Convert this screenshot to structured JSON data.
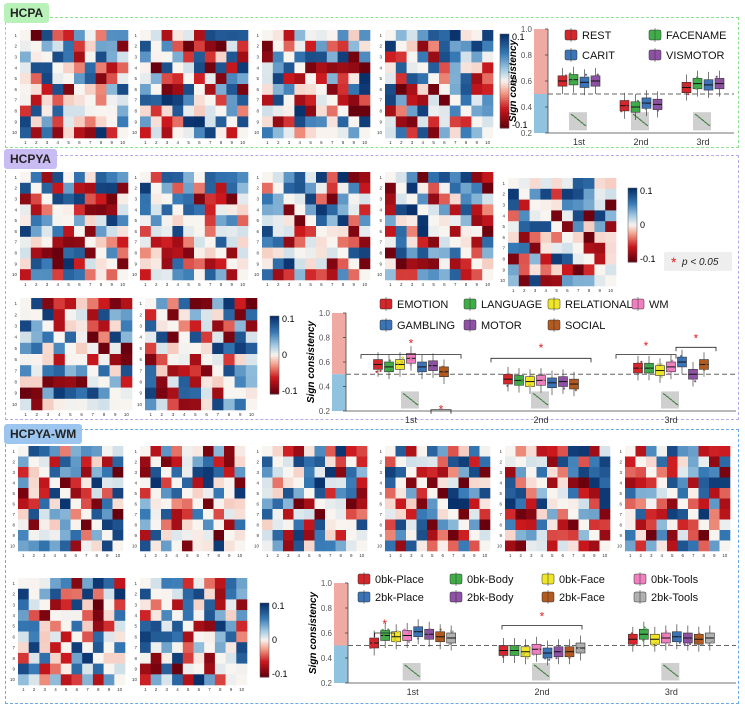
{
  "sections": [
    {
      "id": "hcpa",
      "label": "HCPA",
      "color": "#8fe08f",
      "tag_bg": "#b9f2b9"
    },
    {
      "id": "hcpya",
      "label": "HCPYA",
      "color": "#b9a8e8",
      "tag_bg": "#c9bcf2"
    },
    {
      "id": "hcpyawm",
      "label": "HCPYA-WM",
      "color": "#6aa8e8",
      "tag_bg": "#9cc6f0"
    }
  ],
  "colorbar": {
    "max": "0.1",
    "mid": "0",
    "min": "-0.1"
  },
  "significance_note": {
    "star": "*",
    "text": "p < 0.05"
  },
  "matrix_tick_labels": [
    "1",
    "2",
    "3",
    "4",
    "5",
    "6",
    "7",
    "8",
    "9",
    "10"
  ],
  "chart_data": [
    {
      "type": "box",
      "section": "HCPA",
      "ylabel": "Sign consistency",
      "ylim": [
        0.2,
        1.0
      ],
      "yticks": [
        "0.2",
        "0.4",
        "0.6",
        "0.8",
        "1.0"
      ],
      "categories": [
        "1st",
        "2nd",
        "3rd"
      ],
      "reference_line": 0.5,
      "series": [
        {
          "name": "REST",
          "color": "#d7262b",
          "medians": [
            0.6,
            0.41,
            0.55
          ]
        },
        {
          "name": "FACENAME",
          "color": "#3fae49",
          "medians": [
            0.61,
            0.4,
            0.58
          ]
        },
        {
          "name": "CARIT",
          "color": "#3b74b8",
          "medians": [
            0.59,
            0.43,
            0.57
          ]
        },
        {
          "name": "VISMOTOR",
          "color": "#8e51a5",
          "medians": [
            0.6,
            0.42,
            0.58
          ]
        }
      ]
    },
    {
      "type": "box",
      "section": "HCPYA",
      "ylabel": "Sign consistency",
      "ylim": [
        0.2,
        1.0
      ],
      "yticks": [
        "0.2",
        "0.4",
        "0.6",
        "0.8",
        "1.0"
      ],
      "categories": [
        "1st",
        "2nd",
        "3rd"
      ],
      "reference_line": 0.5,
      "series": [
        {
          "name": "EMOTION",
          "color": "#d7262b",
          "medians": [
            0.58,
            0.46,
            0.55
          ]
        },
        {
          "name": "LANGUAGE",
          "color": "#3fae49",
          "medians": [
            0.56,
            0.45,
            0.55
          ]
        },
        {
          "name": "RELATIONAL",
          "color": "#f0e629",
          "medians": [
            0.58,
            0.44,
            0.53
          ]
        },
        {
          "name": "WM",
          "color": "#f07fbf",
          "medians": [
            0.63,
            0.45,
            0.56
          ]
        },
        {
          "name": "GAMBLING",
          "color": "#3b74b8",
          "medians": [
            0.56,
            0.43,
            0.6
          ]
        },
        {
          "name": "MOTOR",
          "color": "#8e51a5",
          "medians": [
            0.57,
            0.44,
            0.5
          ]
        },
        {
          "name": "SOCIAL",
          "color": "#b35a20",
          "medians": [
            0.52,
            0.42,
            0.58
          ]
        }
      ]
    },
    {
      "type": "box",
      "section": "HCPYA-WM",
      "ylabel": "Sign consistency",
      "ylim": [
        0.2,
        1.0
      ],
      "yticks": [
        "0.2",
        "0.4",
        "0.6",
        "0.8",
        "1.0"
      ],
      "categories": [
        "1st",
        "2nd",
        "3rd"
      ],
      "reference_line": 0.5,
      "series": [
        {
          "name": "0bk-Place",
          "color": "#d7262b",
          "medians": [
            0.52,
            0.46,
            0.55
          ]
        },
        {
          "name": "0bk-Body",
          "color": "#3fae49",
          "medians": [
            0.58,
            0.46,
            0.59
          ]
        },
        {
          "name": "0bk-Face",
          "color": "#f0e629",
          "medians": [
            0.57,
            0.45,
            0.55
          ]
        },
        {
          "name": "0bk-Tools",
          "color": "#f07fbf",
          "medians": [
            0.58,
            0.47,
            0.56
          ]
        },
        {
          "name": "2bk-Place",
          "color": "#3b74b8",
          "medians": [
            0.61,
            0.44,
            0.57
          ]
        },
        {
          "name": "2bk-Body",
          "color": "#8e51a5",
          "medians": [
            0.59,
            0.45,
            0.56
          ]
        },
        {
          "name": "2bk-Face",
          "color": "#b35a20",
          "medians": [
            0.57,
            0.45,
            0.55
          ]
        },
        {
          "name": "2bk-Tools",
          "color": "#b0b0b0",
          "medians": [
            0.56,
            0.48,
            0.56
          ]
        }
      ]
    }
  ]
}
